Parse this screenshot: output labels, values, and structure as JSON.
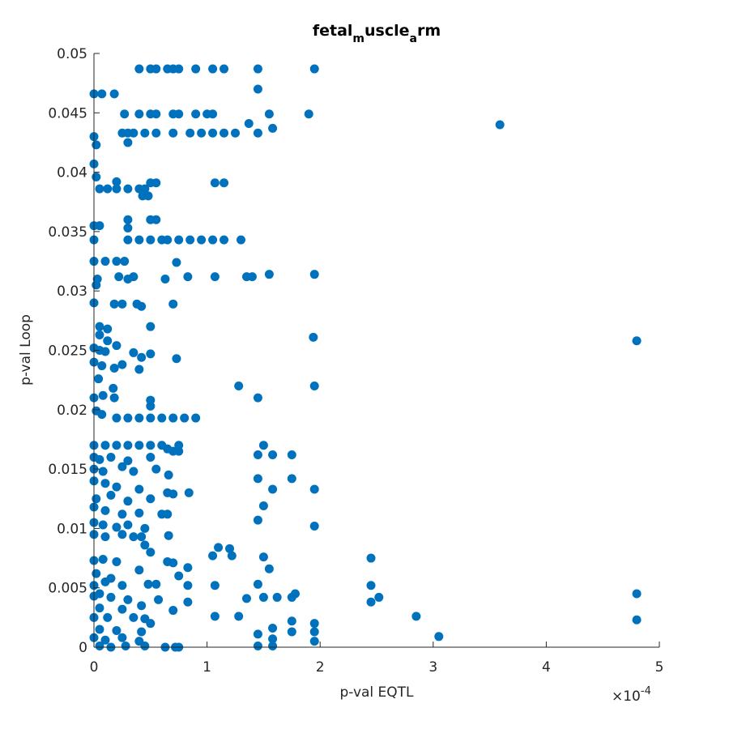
{
  "chart_data": {
    "type": "scatter",
    "title": [
      "fetal",
      "m",
      "uscle",
      "a",
      "rm"
    ],
    "title_subscript": [
      false,
      true,
      false,
      true,
      false
    ],
    "x_label": "p-val EQTL",
    "y_label": "p-val Loop",
    "x_exponent_base": "×10",
    "x_exponent": "-4",
    "color": "#0072BD",
    "grid": false,
    "xlim": [
      0,
      5
    ],
    "xticks": [
      0,
      1,
      2,
      3,
      4,
      5
    ],
    "ylim": [
      0,
      0.05
    ],
    "yticks": [
      0,
      0.005,
      0.01,
      0.015,
      0.02,
      0.025,
      0.03,
      0.035,
      0.04,
      0.045,
      0.05
    ],
    "x": [
      0.4,
      0.5,
      0.55,
      0.65,
      0.7,
      0.75,
      0.9,
      1.05,
      1.15,
      0.27,
      0.4,
      0.5,
      0.55,
      0.7,
      0.75,
      0.9,
      1.0,
      1.05,
      0.25,
      0.3,
      0.35,
      0.45,
      0.55,
      0.7,
      0.85,
      0.95,
      1.05,
      1.15,
      1.25,
      0,
      0.07,
      0.18,
      0,
      0.02,
      0.3,
      0,
      0.02,
      0.2,
      0.5,
      0.55,
      0.05,
      0.12,
      0.2,
      0.3,
      0.4,
      0.45,
      0.43,
      0.48,
      0,
      0.3,
      0.4,
      0.5,
      0.6,
      0.65,
      0.75,
      0.85,
      0.95,
      1.05,
      1.15,
      1.3,
      0,
      0.05,
      0.3,
      0.5,
      0.55,
      0.3,
      0,
      0.1,
      0.2,
      0.27,
      0.73,
      0.03,
      0.02,
      0.22,
      0.3,
      0.35,
      0.63,
      0,
      0.18,
      0.25,
      0.38,
      0.42,
      0.7,
      0.5,
      0.05,
      0.12,
      0.05,
      0.12,
      0,
      0.05,
      0.1,
      0.2,
      0.35,
      0.42,
      0.5,
      0.73,
      0,
      0.07,
      0.18,
      0.25,
      0.4,
      0.04,
      0.17,
      0,
      0.08,
      0.18,
      0.5,
      0.5,
      0.02,
      0.07,
      0.2,
      0.3,
      0.4,
      0.5,
      0.6,
      0.7,
      0.8,
      0.9,
      0,
      0.1,
      0.2,
      0.3,
      0.4,
      0.5,
      0.6,
      0.75,
      0,
      0.05,
      0.15,
      0.3,
      0.5,
      0.7,
      0.65,
      0.75,
      0,
      0.08,
      0.25,
      0.35,
      0.55,
      0.66,
      0,
      0.1,
      0.2,
      0.4,
      0.65,
      0.7,
      0.84,
      0.02,
      0.15,
      0.3,
      0.5,
      0,
      0.1,
      0.25,
      0.4,
      0.6,
      0.65,
      0,
      0.08,
      0.2,
      0.3,
      0.45,
      0,
      0.1,
      0.25,
      0.35,
      0.42,
      0.66,
      0.45,
      0.5,
      0,
      0.08,
      0.2,
      0.65,
      0.7,
      0.83,
      0.75,
      0.4,
      0.02,
      0.15,
      0,
      0.1,
      0.25,
      0.48,
      0.55,
      0.83,
      0,
      0.05,
      0.15,
      0.3,
      0.57,
      0.83,
      0.42,
      0.7,
      0.05,
      0.25,
      0,
      0.12,
      0.35,
      0.45,
      0.5,
      0.05,
      0.2,
      0.42,
      0,
      0.1,
      0.25,
      0.4,
      0.05,
      0.15,
      0.28,
      0.45,
      0.63,
      0.72,
      0.75,
      3.59,
      4.8,
      4.8,
      4.8,
      3.05,
      2.85,
      2.45,
      2.45,
      2.45,
      2.52,
      1.95,
      1.9,
      1.95,
      1.94,
      1.95,
      1.95,
      1.95,
      1.95,
      1.95,
      1.95,
      1.45,
      1.45,
      1.55,
      1.58,
      1.45,
      1.37,
      1.55,
      1.45,
      1.28,
      1.5,
      1.45,
      1.58,
      1.75,
      1.45,
      1.58,
      1.75,
      1.5,
      1.45,
      1.5,
      1.55,
      1.45,
      1.5,
      1.62,
      1.75,
      1.78,
      1.45,
      1.58,
      1.58,
      1.45,
      1.58,
      1.75,
      1.75,
      1.1,
      1.2,
      1.05,
      1.22,
      1.07,
      1.07,
      1.28,
      1.35,
      1.4,
      1.35,
      1.07,
      0.83,
      1.07,
      1.15
    ],
    "values": [
      0.0487,
      0.0487,
      0.0487,
      0.0487,
      0.0487,
      0.0487,
      0.0487,
      0.0487,
      0.0487,
      0.0449,
      0.0449,
      0.0449,
      0.0449,
      0.0449,
      0.0449,
      0.0449,
      0.0449,
      0.0449,
      0.0433,
      0.0433,
      0.0433,
      0.0433,
      0.0433,
      0.0433,
      0.0433,
      0.0433,
      0.0433,
      0.0433,
      0.0433,
      0.0466,
      0.0466,
      0.0466,
      0.043,
      0.0423,
      0.0425,
      0.0407,
      0.0396,
      0.0392,
      0.0391,
      0.0391,
      0.0386,
      0.0386,
      0.0386,
      0.0386,
      0.0386,
      0.0386,
      0.038,
      0.038,
      0.0343,
      0.0343,
      0.0343,
      0.0343,
      0.0343,
      0.0343,
      0.0343,
      0.0343,
      0.0343,
      0.0343,
      0.0343,
      0.0343,
      0.0355,
      0.0355,
      0.036,
      0.036,
      0.036,
      0.0353,
      0.0325,
      0.0325,
      0.0325,
      0.0325,
      0.0324,
      0.031,
      0.0305,
      0.0312,
      0.031,
      0.0312,
      0.031,
      0.029,
      0.0289,
      0.0289,
      0.0289,
      0.0287,
      0.0289,
      0.027,
      0.027,
      0.0268,
      0.0263,
      0.0258,
      0.0252,
      0.025,
      0.0249,
      0.0254,
      0.0248,
      0.0244,
      0.0247,
      0.0243,
      0.024,
      0.0237,
      0.0235,
      0.0238,
      0.0234,
      0.0226,
      0.0218,
      0.021,
      0.0212,
      0.021,
      0.0208,
      0.0203,
      0.0199,
      0.0196,
      0.0193,
      0.0193,
      0.0193,
      0.0193,
      0.0193,
      0.0193,
      0.0193,
      0.0193,
      0.017,
      0.017,
      0.017,
      0.017,
      0.017,
      0.017,
      0.017,
      0.017,
      0.016,
      0.0158,
      0.016,
      0.0157,
      0.016,
      0.0165,
      0.0167,
      0.0165,
      0.015,
      0.0148,
      0.0152,
      0.0148,
      0.015,
      0.0145,
      0.014,
      0.0138,
      0.0135,
      0.0133,
      0.013,
      0.0129,
      0.013,
      0.0125,
      0.0128,
      0.0123,
      0.0125,
      0.0118,
      0.0115,
      0.0112,
      0.0113,
      0.0112,
      0.0112,
      0.0105,
      0.0103,
      0.0101,
      0.0103,
      0.01,
      0.0095,
      0.0093,
      0.0095,
      0.0093,
      0.0093,
      0.0094,
      0.0086,
      0.008,
      0.0073,
      0.0074,
      0.0072,
      0.0072,
      0.0071,
      0.0067,
      0.006,
      0.0065,
      0.0062,
      0.0058,
      0.0052,
      0.0055,
      0.0052,
      0.0053,
      0.0053,
      0.0052,
      0.0043,
      0.0045,
      0.0042,
      0.004,
      0.004,
      0.0038,
      0.0035,
      0.0031,
      0.0033,
      0.0032,
      0.0025,
      0.0025,
      0.0025,
      0.0024,
      0.002,
      0.0015,
      0.0014,
      0.0013,
      0.0008,
      0.0006,
      0.0008,
      0.0005,
      0.0001,
      0,
      0.0001,
      0.0001,
      0,
      0,
      0,
      0.044,
      0.0258,
      0.0045,
      0.0023,
      0.0009,
      0.0026,
      0.0075,
      0.0052,
      0.0038,
      0.0042,
      0.0487,
      0.0449,
      0.0314,
      0.0261,
      0.022,
      0.0133,
      0.0102,
      0.002,
      0.0013,
      0.0005,
      0.0487,
      0.047,
      0.0449,
      0.0437,
      0.0433,
      0.0441,
      0.0314,
      0.021,
      0.022,
      0.017,
      0.0162,
      0.0162,
      0.0162,
      0.0142,
      0.0133,
      0.0142,
      0.0119,
      0.0107,
      0.0076,
      0.0066,
      0.0053,
      0.0042,
      0.0042,
      0.0042,
      0.0045,
      0.0011,
      0.0016,
      0.0007,
      0.0001,
      0.0001,
      0.0022,
      0.0013,
      0.0084,
      0.0083,
      0.0077,
      0.0077,
      0.0052,
      0.0026,
      0.0026,
      0.0041,
      0.0312,
      0.0312,
      0.0312,
      0.0312,
      0.0391,
      0.0391
    ]
  }
}
